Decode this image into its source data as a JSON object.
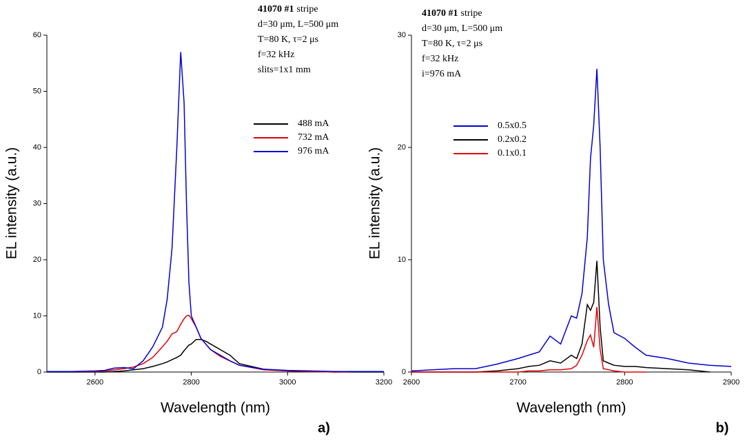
{
  "chart_data": [
    {
      "type": "line",
      "sample_id": "41070 #1",
      "sample_note": "stripe",
      "annotations": [
        "d=30 μm, L=500 μm",
        "T=80 K, τ=2 μs",
        "f=32 kHz",
        "slits=1x1 mm"
      ],
      "x_label": "Wavelength (nm)",
      "y_label": "EL intensity (a.u.)",
      "panel_label": "a)",
      "xlim": [
        2500,
        3200
      ],
      "xticks": [
        2600,
        2800,
        3000,
        3200
      ],
      "ylim": [
        0,
        60
      ],
      "yticks": [
        0,
        10,
        20,
        30,
        40,
        50,
        60
      ],
      "x": [
        2500,
        2550,
        2600,
        2620,
        2640,
        2660,
        2680,
        2700,
        2720,
        2740,
        2750,
        2760,
        2770,
        2778,
        2785,
        2790,
        2795,
        2800,
        2810,
        2820,
        2830,
        2840,
        2860,
        2880,
        2900,
        2950,
        3000,
        3050,
        3100,
        3150,
        3200
      ],
      "series": [
        {
          "name": "488 mA",
          "color": "#000000",
          "values": [
            0,
            0,
            0,
            0,
            0.1,
            0.2,
            0.4,
            0.6,
            1,
            1.5,
            1.8,
            2.2,
            2.6,
            3,
            3.8,
            4.3,
            4.8,
            5,
            5.8,
            5.8,
            5.5,
            5,
            4,
            3,
            1.5,
            0.5,
            0.2,
            0.1,
            0,
            0,
            0
          ]
        },
        {
          "name": "732 mA",
          "color": "#e00000",
          "values": [
            0.1,
            0.1,
            0.1,
            0.2,
            0.4,
            0.6,
            0.9,
            1.5,
            2.6,
            4.5,
            5.5,
            6.8,
            7.2,
            8.5,
            9.5,
            10,
            10.1,
            9.5,
            8,
            6,
            5,
            4,
            2.8,
            2,
            1.2,
            0.4,
            0.2,
            0.1,
            0,
            0.1,
            0.1
          ]
        },
        {
          "name": "976 mA",
          "color": "#0000d0",
          "values": [
            0.1,
            0.1,
            0.2,
            0.3,
            0.7,
            0.8,
            0.6,
            2,
            4.5,
            8,
            13,
            22,
            40,
            57,
            48,
            30,
            16,
            10,
            8,
            6,
            5,
            4,
            3,
            2,
            1.2,
            0.5,
            0.3,
            0.2,
            0.1,
            0.1,
            0.1
          ]
        }
      ]
    },
    {
      "type": "line",
      "sample_id": "41070 #1",
      "sample_note": "stripe",
      "annotations": [
        "d=30 μm, L=500 μm",
        "T=80 K, τ=2 μs",
        "f=32 kHz",
        "i=976 mA"
      ],
      "x_label": "Wavelength (nm)",
      "y_label": "EL intensity (a.u.)",
      "panel_label": "b)",
      "xlim": [
        2600,
        2900
      ],
      "xticks": [
        2600,
        2700,
        2800,
        2900
      ],
      "ylim": [
        0,
        30
      ],
      "yticks": [
        0,
        10,
        20,
        30
      ],
      "x": [
        2600,
        2620,
        2640,
        2660,
        2680,
        2700,
        2710,
        2720,
        2730,
        2740,
        2750,
        2755,
        2760,
        2765,
        2768,
        2771,
        2774,
        2777,
        2780,
        2785,
        2790,
        2800,
        2810,
        2820,
        2840,
        2860,
        2880,
        2900
      ],
      "series": [
        {
          "name": "0.5x0.5",
          "color": "#0000d0",
          "values": [
            0.1,
            0.2,
            0.3,
            0.3,
            0.7,
            1.2,
            1.5,
            1.8,
            3.2,
            2.5,
            5,
            4.8,
            7,
            12,
            19,
            22,
            27,
            20,
            10,
            6,
            3.5,
            3,
            2.2,
            1.5,
            1.2,
            0.8,
            0.6,
            0.5
          ]
        },
        {
          "name": "0.2x0.2",
          "color": "#000000",
          "values": [
            0,
            0,
            0,
            0,
            0.1,
            0.3,
            0.5,
            0.6,
            1,
            0.8,
            1.5,
            1.2,
            2.5,
            6,
            5.5,
            6.2,
            9.9,
            4,
            1,
            0.8,
            0.6,
            0.5,
            0.5,
            0.4,
            0.3,
            0.2,
            0,
            null
          ]
        },
        {
          "name": "0.1x0.1",
          "color": "#e00000",
          "values": [
            0,
            0,
            0,
            0,
            0,
            0,
            0.1,
            0.1,
            0.2,
            0.2,
            0.3,
            0.6,
            1.5,
            2.8,
            3.3,
            2.2,
            5.8,
            2,
            0.3,
            0.2,
            0.1,
            0,
            0,
            0,
            null,
            null,
            null,
            null
          ]
        }
      ]
    }
  ]
}
